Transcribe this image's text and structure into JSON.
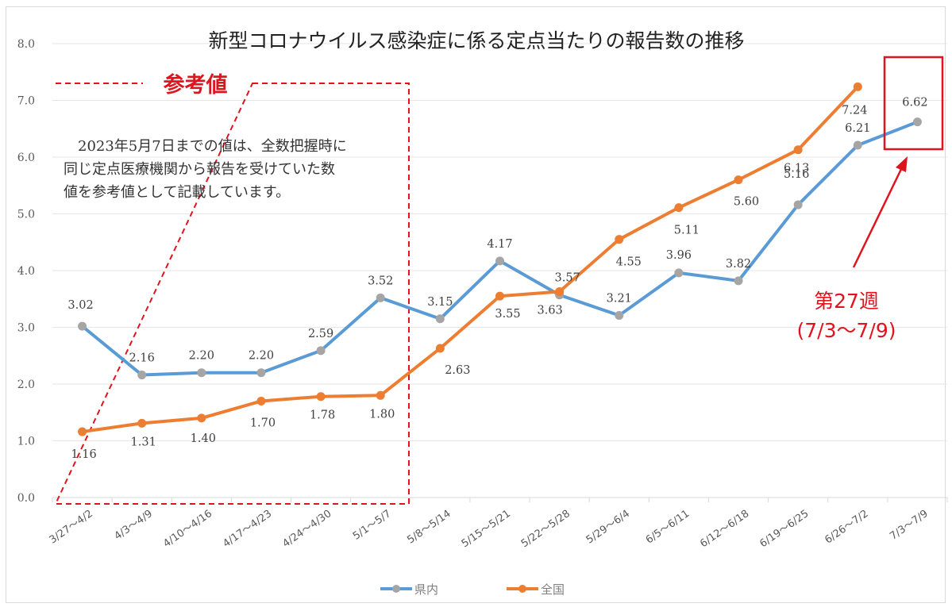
{
  "chart_data": {
    "type": "line",
    "title": "新型コロナウイルス感染症に係る定点当たりの報告数の推移",
    "xlabel": "",
    "ylabel": "",
    "ylim": [
      0,
      8
    ],
    "yticks": [
      "0.0",
      "1.0",
      "2.0",
      "3.0",
      "4.0",
      "5.0",
      "6.0",
      "7.0",
      "8.0"
    ],
    "grid": true,
    "legend_position": "bottom",
    "categories": [
      "3/27～4/2",
      "4/3～4/9",
      "4/10～4/16",
      "4/17～4/23",
      "4/24～4/30",
      "5/1～5/7",
      "5/8～5/14",
      "5/15～5/21",
      "5/22～5/28",
      "5/29～6/4",
      "6/5～6/11",
      "6/12～6/18",
      "6/19～6/25",
      "6/26～7/2",
      "7/3～7/9"
    ],
    "series": [
      {
        "name": "県内",
        "color": "#5b9bd5",
        "marker_color": "#a5a5a5",
        "values": [
          3.02,
          2.16,
          2.2,
          2.2,
          2.59,
          3.52,
          3.15,
          4.17,
          3.57,
          3.21,
          3.96,
          3.82,
          5.16,
          6.21,
          6.62
        ],
        "labels": [
          "3.02",
          "2.16",
          "2.20",
          "2.20",
          "2.59",
          "3.52",
          "3.15",
          "4.17",
          "3.57",
          "3.21",
          "3.96",
          "3.82",
          "5.16",
          "6.21",
          "6.62"
        ]
      },
      {
        "name": "全国",
        "color": "#ed7d31",
        "marker_color": "#ed7d31",
        "values": [
          1.16,
          1.31,
          1.4,
          1.7,
          1.78,
          1.8,
          2.63,
          3.55,
          3.63,
          4.55,
          5.11,
          5.6,
          6.13,
          7.24,
          null
        ],
        "labels": [
          "1.16",
          "1.31",
          "1.40",
          "1.70",
          "1.78",
          "1.80",
          "2.63",
          "3.55",
          "3.63",
          "4.55",
          "5.11",
          "5.60",
          "6.13",
          "7.24",
          null
        ]
      }
    ],
    "annotations": {
      "reference_box": {
        "title": "参考値",
        "note_lines": [
          "　2023年5月7日までの値は、全数把握時に",
          "同じ定点医療機関から報告を受けていた数",
          "値を参考値として記載しています。"
        ],
        "color": "#e0141e"
      },
      "highlight": {
        "line1": "第27週",
        "line2": "(7/3～7/9)",
        "color": "#e0141e"
      }
    }
  }
}
